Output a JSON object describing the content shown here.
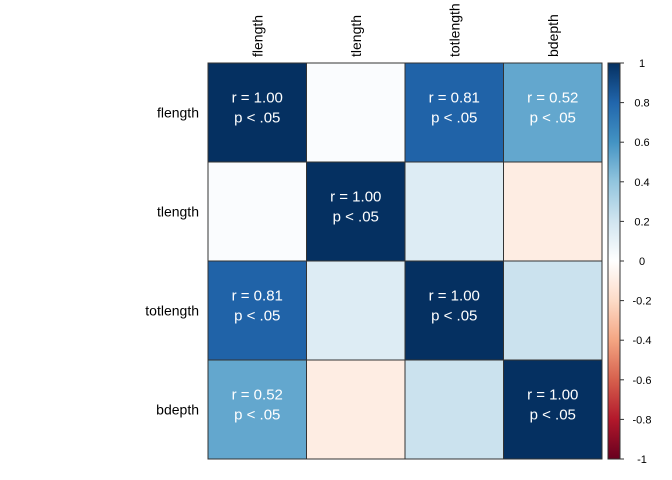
{
  "chart_data": {
    "type": "heatmap",
    "variables": [
      "flength",
      "tlength",
      "totlength",
      "bdepth"
    ],
    "matrix": [
      [
        1.0,
        0.02,
        0.81,
        0.52
      ],
      [
        0.02,
        1.0,
        0.15,
        -0.1
      ],
      [
        0.81,
        0.15,
        1.0,
        0.22
      ],
      [
        0.52,
        -0.1,
        0.22,
        1.0
      ]
    ],
    "cell_labels": [
      [
        "r = 1.00\np < .05",
        "",
        "r = 0.81\np < .05",
        "r = 0.52\np < .05"
      ],
      [
        "",
        "r = 1.00\np < .05",
        "",
        ""
      ],
      [
        "r = 0.81\np < .05",
        "",
        "r = 1.00\np < .05",
        ""
      ],
      [
        "r = 0.52\np < .05",
        "",
        "",
        "r = 1.00\np < .05"
      ]
    ],
    "colorbar": {
      "range": [
        -1,
        1
      ],
      "ticks": [
        "1",
        "0.8",
        "0.6",
        "0.4",
        "0.2",
        "0",
        "-0.2",
        "-0.4",
        "-0.6",
        "-0.8",
        "-1"
      ],
      "palette": [
        "#67001F",
        "#B2182B",
        "#D6604D",
        "#F4A582",
        "#FDDBC7",
        "#FFFFFF",
        "#D1E5F0",
        "#92C5DE",
        "#4393C3",
        "#2166AC",
        "#053061"
      ]
    }
  }
}
